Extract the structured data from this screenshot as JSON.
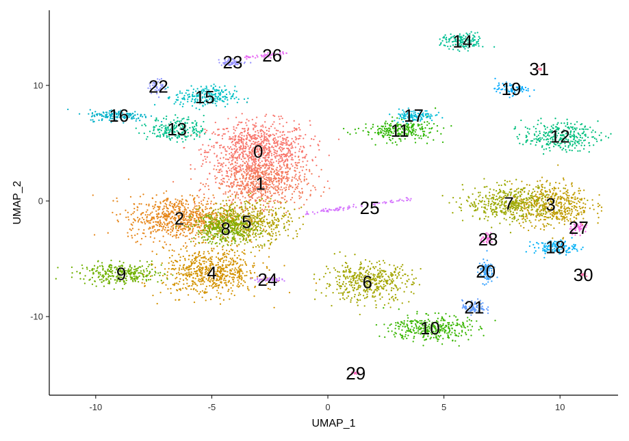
{
  "chart_data": {
    "type": "scatter",
    "xlabel": "UMAP_1",
    "ylabel": "UMAP_2",
    "xlim": [
      -12,
      12.5
    ],
    "ylim": [
      -16.8,
      16.5
    ],
    "x_ticks": [
      {
        "value": -10,
        "label": "-10"
      },
      {
        "value": -5,
        "label": "-5"
      },
      {
        "value": 0,
        "label": "0"
      },
      {
        "value": 5,
        "label": "5"
      },
      {
        "value": 10,
        "label": "10"
      }
    ],
    "y_ticks": [
      {
        "value": -10,
        "label": "-10"
      },
      {
        "value": 0,
        "label": "0"
      },
      {
        "value": 10,
        "label": "10"
      }
    ],
    "grid": false,
    "legend": "none",
    "point_color_scale": "hue",
    "clusters": [
      {
        "id": "0",
        "label": "0",
        "x": -3.0,
        "y": 4.3,
        "color": "#F8766D",
        "shape": "ellipse",
        "spread": [
          2.2,
          2.6
        ],
        "n": 900
      },
      {
        "id": "1",
        "label": "1",
        "x": -2.9,
        "y": 1.5,
        "color": "#F37B59",
        "shape": "ellipse",
        "spread": [
          2.0,
          2.0
        ],
        "n": 600
      },
      {
        "id": "2",
        "label": "2",
        "x": -6.4,
        "y": -1.5,
        "color": "#E6861A",
        "shape": "ellipse",
        "spread": [
          2.2,
          1.9
        ],
        "n": 700
      },
      {
        "id": "3",
        "label": "3",
        "x": 9.6,
        "y": -0.3,
        "color": "#C09B00",
        "shape": "ellipse",
        "spread": [
          1.7,
          1.9
        ],
        "n": 500
      },
      {
        "id": "4",
        "label": "4",
        "x": -5.0,
        "y": -6.2,
        "color": "#D39200",
        "shape": "ellipse",
        "spread": [
          2.1,
          2.0
        ],
        "n": 650
      },
      {
        "id": "5",
        "label": "5",
        "x": -3.5,
        "y": -1.8,
        "color": "#B2A000",
        "shape": "ellipse",
        "spread": [
          1.9,
          1.8
        ],
        "n": 550
      },
      {
        "id": "6",
        "label": "6",
        "x": 1.7,
        "y": -7.0,
        "color": "#A3A500",
        "shape": "ellipse",
        "spread": [
          1.9,
          1.7
        ],
        "n": 450
      },
      {
        "id": "7",
        "label": "7",
        "x": 7.8,
        "y": -0.2,
        "color": "#9AA800",
        "shape": "ellipse",
        "spread": [
          1.9,
          1.5
        ],
        "n": 400
      },
      {
        "id": "8",
        "label": "8",
        "x": -4.4,
        "y": -2.4,
        "color": "#7CAE00",
        "shape": "ellipse",
        "spread": [
          1.4,
          1.3
        ],
        "n": 350
      },
      {
        "id": "9",
        "label": "9",
        "x": -8.9,
        "y": -6.3,
        "color": "#6FB000",
        "shape": "ellipse",
        "spread": [
          1.8,
          0.9
        ],
        "n": 300
      },
      {
        "id": "10",
        "label": "10",
        "x": 4.4,
        "y": -11.0,
        "color": "#39B600",
        "shape": "ellipse",
        "spread": [
          1.7,
          1.1
        ],
        "n": 350
      },
      {
        "id": "11",
        "label": "11",
        "x": 3.1,
        "y": 6.1,
        "color": "#2DB600",
        "shape": "ellipse",
        "spread": [
          1.6,
          0.9
        ],
        "n": 250
      },
      {
        "id": "12",
        "label": "12",
        "x": 10.0,
        "y": 5.6,
        "color": "#00BF7D",
        "shape": "ellipse",
        "spread": [
          1.6,
          1.2
        ],
        "n": 300
      },
      {
        "id": "13",
        "label": "13",
        "x": -6.5,
        "y": 6.2,
        "color": "#00C08B",
        "shape": "ellipse",
        "spread": [
          1.2,
          1.0
        ],
        "n": 220
      },
      {
        "id": "14",
        "label": "14",
        "x": 5.8,
        "y": 13.8,
        "color": "#00C094",
        "shape": "ellipse",
        "spread": [
          0.9,
          0.7
        ],
        "n": 160
      },
      {
        "id": "15",
        "label": "15",
        "x": -5.3,
        "y": 9.0,
        "color": "#00BFC4",
        "shape": "ellipse",
        "spread": [
          1.3,
          0.9
        ],
        "n": 230
      },
      {
        "id": "16",
        "label": "16",
        "x": -9.0,
        "y": 7.4,
        "color": "#00B0C8",
        "shape": "ellipse",
        "spread": [
          1.3,
          0.5
        ],
        "n": 160
      },
      {
        "id": "17",
        "label": "17",
        "x": 3.7,
        "y": 7.4,
        "color": "#00BCD8",
        "shape": "ellipse",
        "spread": [
          0.9,
          0.5
        ],
        "n": 120
      },
      {
        "id": "18",
        "label": "18",
        "x": 9.8,
        "y": -4.0,
        "color": "#00B0F6",
        "shape": "ellipse",
        "spread": [
          0.9,
          0.6
        ],
        "n": 140
      },
      {
        "id": "19",
        "label": "19",
        "x": 7.9,
        "y": 9.7,
        "color": "#00A9FF",
        "shape": "ellipse",
        "spread": [
          0.7,
          0.5
        ],
        "n": 90
      },
      {
        "id": "20",
        "label": "20",
        "x": 6.8,
        "y": -6.1,
        "color": "#35A2FF",
        "shape": "ellipse",
        "spread": [
          0.3,
          1.0
        ],
        "n": 110
      },
      {
        "id": "21",
        "label": "21",
        "x": 6.3,
        "y": -9.2,
        "color": "#619CFF",
        "shape": "ellipse",
        "spread": [
          0.5,
          0.6
        ],
        "n": 90
      },
      {
        "id": "22",
        "label": "22",
        "x": -7.3,
        "y": 9.9,
        "color": "#8B93FF",
        "shape": "ellipse",
        "spread": [
          0.4,
          0.6
        ],
        "n": 60
      },
      {
        "id": "23",
        "label": "23",
        "x": -4.1,
        "y": 12.0,
        "color": "#9590FF",
        "shape": "ellipse",
        "spread": [
          0.6,
          0.3
        ],
        "n": 60
      },
      {
        "id": "24",
        "label": "24",
        "x": -2.6,
        "y": -6.8,
        "color": "#C77CFF",
        "shape": "ellipse",
        "spread": [
          0.6,
          0.2
        ],
        "n": 60
      },
      {
        "id": "25",
        "label": "25",
        "x": 1.8,
        "y": -0.6,
        "color": "#D575FE",
        "shape": "streak",
        "from": [
          -1.0,
          -1.1
        ],
        "to": [
          3.6,
          0.2
        ],
        "n": 90
      },
      {
        "id": "26",
        "label": "26",
        "x": -2.4,
        "y": 12.6,
        "color": "#E76BF3",
        "shape": "streak",
        "from": [
          -3.6,
          12.4
        ],
        "to": [
          -1.7,
          12.8
        ],
        "n": 50
      },
      {
        "id": "27",
        "label": "27",
        "x": 10.8,
        "y": -2.3,
        "color": "#F564E3",
        "shape": "ellipse",
        "spread": [
          0.4,
          0.5
        ],
        "n": 50
      },
      {
        "id": "28",
        "label": "28",
        "x": 6.9,
        "y": -3.3,
        "color": "#FA62DB",
        "shape": "ellipse",
        "spread": [
          0.3,
          0.4
        ],
        "n": 40
      },
      {
        "id": "29",
        "label": "29",
        "x": 1.2,
        "y": -14.9,
        "color": "#FF62BC",
        "shape": "ellipse",
        "spread": [
          0.2,
          0.15
        ],
        "n": 15
      },
      {
        "id": "30",
        "label": "30",
        "x": 11.0,
        "y": -6.4,
        "color": "#FF67A4",
        "shape": "ellipse",
        "spread": [
          0.2,
          0.2
        ],
        "n": 15
      },
      {
        "id": "31",
        "label": "31",
        "x": 9.1,
        "y": 11.4,
        "color": "#FF6C91",
        "shape": "ellipse",
        "spread": [
          0.15,
          0.15
        ],
        "n": 8
      }
    ]
  }
}
